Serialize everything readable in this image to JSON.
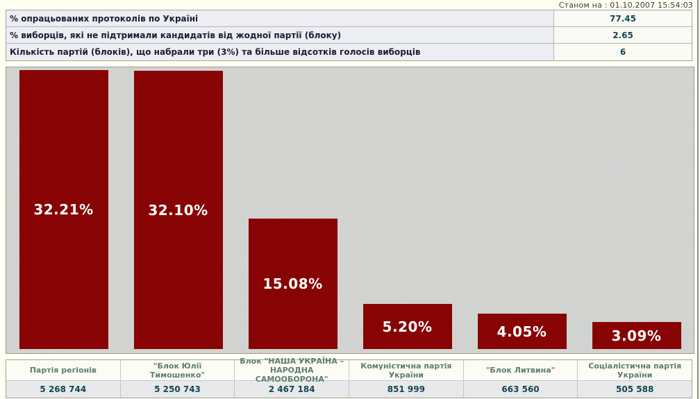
{
  "header": {
    "timestamp": "Станом на : 01.10.2007 15:54:03"
  },
  "summary_table": {
    "rows": [
      {
        "label": "% опрацьованих протоколів по Україні",
        "value": "77.45"
      },
      {
        "label": "% виборців, які не підтримали кандидатів від жодної партії (блоку)",
        "value": "2.65"
      },
      {
        "label": "Кількість партій (блоків), що набрали три (3%) та більше відсотків голосів виборців",
        "value": "6"
      }
    ]
  },
  "chart_data": {
    "type": "bar",
    "categories": [
      "Партія регіонів",
      "\"Блок Юлії Тимошенко\"",
      "Блок \"НАША УКРАЇНА – НАРОДНА САМООБОРОНА\"",
      "Комуністична партія України",
      "\"Блок Литвина\"",
      "Соціалістична партія України"
    ],
    "values": [
      32.21,
      32.1,
      15.08,
      5.2,
      4.05,
      3.09
    ],
    "value_labels": [
      "32.21%",
      "32.10%",
      "15.08%",
      "5.20%",
      "4.05%",
      "3.09%"
    ],
    "votes": [
      "5 268 744",
      "5 250 743",
      "2 467 184",
      "851 999",
      "663 560",
      "505 588"
    ],
    "title": "",
    "xlabel": "",
    "ylabel": "",
    "ylim": [
      0,
      33
    ],
    "grid": false,
    "legend": false,
    "bar_color": "#880404",
    "bar_label_color": "#ffffff",
    "background_color": "#d4d6d3"
  },
  "parties_table": {
    "parties": [
      {
        "name": "Партія регіонів",
        "votes": "5 268 744"
      },
      {
        "name": "\"Блок Юлії Тимошенко\"",
        "votes": "5 250 743"
      },
      {
        "name": "Блок \"НАША УКРАЇНА – НАРОДНА САМООБОРОНА\"",
        "votes": "2 467 184"
      },
      {
        "name": "Комуністична партія України",
        "votes": "851 999"
      },
      {
        "name": "\"Блок Литвина\"",
        "votes": "663 560"
      },
      {
        "name": "Соціалістична партія України",
        "votes": "505 588"
      }
    ]
  }
}
